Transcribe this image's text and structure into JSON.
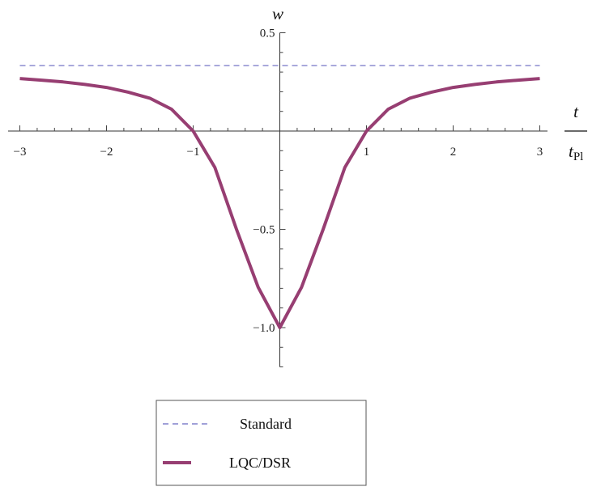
{
  "chart_data": {
    "type": "line",
    "title": "",
    "xlabel": {
      "main": "t",
      "denominator": "t",
      "denominator_sub": "Pl"
    },
    "ylabel": "w",
    "xlim": [
      -3.1,
      3.1
    ],
    "ylim": [
      -1.2,
      0.5
    ],
    "x_ticks": [
      -3,
      -2,
      -1,
      1,
      2,
      3
    ],
    "x_tick_labels": [
      "−3",
      "−2",
      "−1",
      "1",
      "2",
      "3"
    ],
    "y_ticks": [
      0.5,
      -0.5,
      -1.0
    ],
    "y_tick_labels": [
      "0.5",
      "−0.5",
      "−1.0"
    ],
    "grid": false,
    "legend_position": "bottom-center",
    "series": [
      {
        "name": "Standard",
        "style": "dashed",
        "color": "#8080cc",
        "x": [
          -3,
          3
        ],
        "y": [
          0.333,
          0.333
        ]
      },
      {
        "name": "LQC/DSR",
        "style": "solid",
        "color": "#973e72",
        "x": [
          -3,
          -2.75,
          -2.5,
          -2.25,
          -2,
          -1.75,
          -1.5,
          -1.25,
          -1,
          -0.75,
          -0.5,
          -0.25,
          0,
          0.25,
          0.5,
          0.75,
          1,
          1.25,
          1.5,
          1.75,
          2,
          2.25,
          2.5,
          2.75,
          3
        ],
        "y": [
          0.267,
          0.259,
          0.25,
          0.237,
          0.222,
          0.198,
          0.167,
          0.111,
          0.0,
          -0.185,
          -0.5,
          -0.795,
          -1.0,
          -0.795,
          -0.5,
          -0.185,
          0.0,
          0.111,
          0.167,
          0.198,
          0.222,
          0.237,
          0.25,
          0.259,
          0.267
        ]
      }
    ]
  }
}
